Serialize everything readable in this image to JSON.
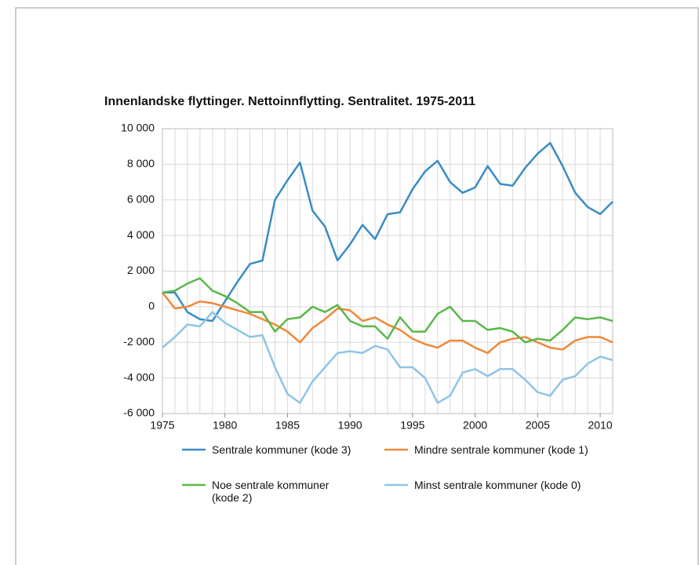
{
  "chart_data": {
    "type": "line",
    "title": "Innenlandske flyttinger. Nettoinnflytting. Sentralitet. 1975-2011",
    "x": [
      1975,
      1976,
      1977,
      1978,
      1979,
      1980,
      1981,
      1982,
      1983,
      1984,
      1985,
      1986,
      1987,
      1988,
      1989,
      1990,
      1991,
      1992,
      1993,
      1994,
      1995,
      1996,
      1997,
      1998,
      1999,
      2000,
      2001,
      2002,
      2003,
      2004,
      2005,
      2006,
      2007,
      2008,
      2009,
      2010,
      2011
    ],
    "xlim": [
      1975,
      2011
    ],
    "xticks": [
      1975,
      1980,
      1985,
      1990,
      1995,
      2000,
      2005,
      2010
    ],
    "ylim": [
      -6000,
      10000
    ],
    "yticks": [
      {
        "value": -6000,
        "label": "-6 000"
      },
      {
        "value": -4000,
        "label": "-4 000"
      },
      {
        "value": -2000,
        "label": "-2 000"
      },
      0,
      {
        "value": 2000,
        "label": "2 000"
      },
      {
        "value": 4000,
        "label": "4 000"
      },
      {
        "value": 6000,
        "label": "6 000"
      },
      {
        "value": 8000,
        "label": "8 000"
      },
      {
        "value": 10000,
        "label": "10 000"
      }
    ],
    "grid": true,
    "series": [
      {
        "name": "Sentrale kommuner (kode 3)",
        "color": "#3a8cc4",
        "values": [
          800,
          800,
          -300,
          -700,
          -800,
          300,
          1400,
          2400,
          2600,
          6000,
          7100,
          8100,
          5400,
          4500,
          2600,
          3500,
          4600,
          3800,
          5200,
          5300,
          6600,
          7600,
          8200,
          7000,
          6400,
          6700,
          7900,
          6900,
          6800,
          7800,
          8600,
          9200,
          7900,
          6400,
          5600,
          5200,
          5900
        ]
      },
      {
        "name": "Mindre sentrale kommuner (kode 1)",
        "color": "#f0883a",
        "values": [
          800,
          -100,
          0,
          300,
          200,
          0,
          -200,
          -400,
          -700,
          -1000,
          -1400,
          -2000,
          -1200,
          -700,
          -100,
          -200,
          -800,
          -600,
          -1000,
          -1300,
          -1800,
          -2100,
          -2300,
          -1900,
          -1900,
          -2300,
          -2600,
          -2000,
          -1800,
          -1700,
          -2000,
          -2300,
          -2400,
          -1900,
          -1700,
          -1700,
          -2000
        ]
      },
      {
        "name": "Noe sentrale kommuner (kode 2)",
        "color": "#5ab849",
        "values": [
          800,
          900,
          1300,
          1600,
          900,
          600,
          200,
          -300,
          -300,
          -1400,
          -700,
          -600,
          0,
          -300,
          100,
          -800,
          -1100,
          -1100,
          -1800,
          -600,
          -1400,
          -1400,
          -400,
          0,
          -800,
          -800,
          -1300,
          -1200,
          -1400,
          -2000,
          -1800,
          -1900,
          -1300,
          -600,
          -700,
          -600,
          -800
        ]
      },
      {
        "name": "Minst sentrale kommuner (kode 0)",
        "color": "#8ec4e6",
        "values": [
          -2300,
          -1700,
          -1000,
          -1100,
          -300,
          -900,
          -1300,
          -1700,
          -1600,
          -3400,
          -4900,
          -5400,
          -4200,
          -3400,
          -2600,
          -2500,
          -2600,
          -2200,
          -2400,
          -3400,
          -3400,
          -4000,
          -5400,
          -5000,
          -3700,
          -3500,
          -3900,
          -3500,
          -3500,
          -4100,
          -4800,
          -5000,
          -4100,
          -3900,
          -3200,
          -2800,
          -3000
        ]
      }
    ]
  }
}
